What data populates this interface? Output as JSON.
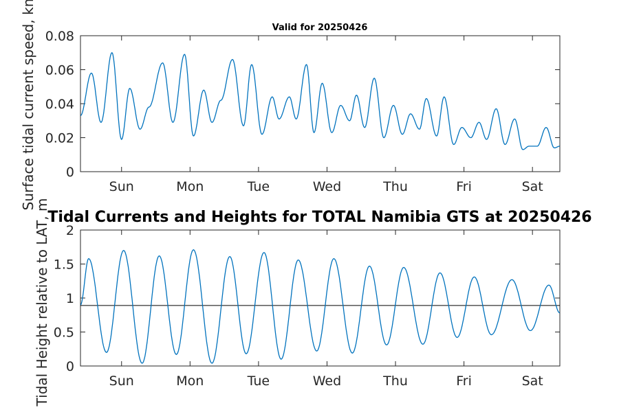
{
  "chart_data": [
    {
      "type": "line",
      "title": "Valid for 20250426",
      "ylabel": "Surface tidal current speed, kn",
      "xlim": [
        0,
        7
      ],
      "ylim": [
        0,
        0.08
      ],
      "yticks": [
        0,
        0.02,
        0.04,
        0.06,
        0.08
      ],
      "xtick_labels": [
        "Sun",
        "Mon",
        "Tue",
        "Wed",
        "Thu",
        "Fri",
        "Sat"
      ],
      "xtick_positions": [
        0.6,
        1.6,
        2.6,
        3.6,
        4.6,
        5.6,
        6.6
      ],
      "series": [
        {
          "color": "#0072bd",
          "x": [
            0,
            0.16,
            0.3,
            0.46,
            0.6,
            0.72,
            0.87,
            1.0,
            1.2,
            1.35,
            1.52,
            1.65,
            1.8,
            1.92,
            2.05,
            2.22,
            2.38,
            2.5,
            2.65,
            2.8,
            2.9,
            3.05,
            3.15,
            3.3,
            3.41,
            3.53,
            3.67,
            3.8,
            3.93,
            4.03,
            4.15,
            4.29,
            4.43,
            4.57,
            4.7,
            4.82,
            4.95,
            5.05,
            5.2,
            5.31,
            5.45,
            5.57,
            5.7,
            5.82,
            5.93,
            6.07,
            6.2,
            6.34,
            6.46,
            6.55,
            6.67,
            6.8,
            6.92,
            7.0
          ],
          "values": [
            0.033,
            0.058,
            0.029,
            0.07,
            0.019,
            0.049,
            0.025,
            0.038,
            0.064,
            0.029,
            0.069,
            0.021,
            0.048,
            0.029,
            0.042,
            0.066,
            0.027,
            0.063,
            0.022,
            0.044,
            0.031,
            0.044,
            0.031,
            0.063,
            0.023,
            0.052,
            0.023,
            0.039,
            0.03,
            0.045,
            0.026,
            0.055,
            0.02,
            0.039,
            0.022,
            0.034,
            0.025,
            0.043,
            0.021,
            0.044,
            0.016,
            0.026,
            0.02,
            0.029,
            0.019,
            0.037,
            0.016,
            0.031,
            0.013,
            0.015,
            0.015,
            0.026,
            0.014,
            0.015
          ]
        }
      ]
    },
    {
      "type": "line",
      "title": "Tidal Currents and Heights for TOTAL Namibia GTS at 20250426",
      "ylabel": "Tidal Height relative to LAT, m",
      "xlim": [
        0,
        7
      ],
      "ylim": [
        0,
        2
      ],
      "yticks": [
        0,
        0.5,
        1,
        1.5,
        2
      ],
      "yticks_text": [
        "0",
        "0.5",
        "1",
        "1.5",
        "2"
      ],
      "xtick_labels": [
        "Sun",
        "Mon",
        "Tue",
        "Wed",
        "Thu",
        "Fri",
        "Sat"
      ],
      "xtick_positions": [
        0.6,
        1.6,
        2.6,
        3.6,
        4.6,
        5.6,
        6.6
      ],
      "reference_line": 0.89,
      "series": [
        {
          "color": "#0072bd",
          "x": [
            0,
            0.12,
            0.38,
            0.63,
            0.9,
            1.15,
            1.4,
            1.65,
            1.92,
            2.18,
            2.42,
            2.68,
            2.93,
            3.18,
            3.45,
            3.7,
            3.97,
            4.22,
            4.47,
            4.72,
            5.0,
            5.25,
            5.5,
            5.75,
            6.0,
            6.3,
            6.57,
            6.84,
            7.0
          ],
          "values": [
            0.9,
            1.58,
            0.2,
            1.7,
            0.04,
            1.62,
            0.17,
            1.71,
            0.04,
            1.61,
            0.18,
            1.67,
            0.1,
            1.56,
            0.22,
            1.58,
            0.19,
            1.47,
            0.31,
            1.45,
            0.32,
            1.37,
            0.42,
            1.31,
            0.46,
            1.27,
            0.52,
            1.19,
            0.78
          ]
        }
      ]
    }
  ]
}
